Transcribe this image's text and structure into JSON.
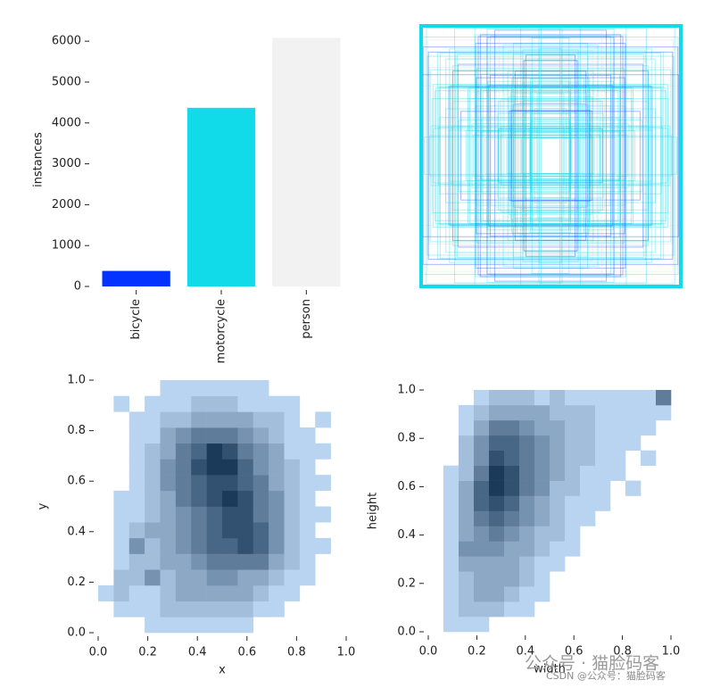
{
  "chart_data": [
    {
      "type": "bar",
      "categories": [
        "bicycle",
        "motorcycle",
        "person"
      ],
      "values": [
        380,
        4370,
        6080
      ],
      "colors": [
        "#0433ff",
        "#11dbe8",
        "#f2f2f2"
      ],
      "ylabel": "instances",
      "ylim": [
        0,
        6200
      ],
      "yticks": [
        0,
        1000,
        2000,
        3000,
        4000,
        5000,
        6000
      ]
    },
    {
      "type": "heatmap",
      "xlabel": "x",
      "ylabel": "y",
      "colors": [
        "#b9d4f0",
        "#1b3a5a"
      ],
      "xlim": [
        0,
        1
      ],
      "ylim": [
        0,
        1
      ],
      "xticks": [
        {
          "value": 0,
          "label": "0.0"
        },
        {
          "value": 0.2,
          "label": "0.2"
        },
        {
          "value": 0.4,
          "label": "0.4"
        },
        {
          "value": 0.6,
          "label": "0.6"
        },
        {
          "value": 0.8,
          "label": "0.8"
        },
        {
          "value": 1,
          "label": "1.0"
        }
      ],
      "yticks": [
        {
          "value": 0,
          "label": "0.0"
        },
        {
          "value": 0.2,
          "label": "0.2"
        },
        {
          "value": 0.4,
          "label": "0.4"
        },
        {
          "value": 0.6,
          "label": "0.6"
        },
        {
          "value": 0.8,
          "label": "0.8"
        },
        {
          "value": 1,
          "label": "1.0"
        }
      ],
      "z": [
        [
          0,
          0,
          0,
          1,
          1,
          1,
          1,
          1,
          1,
          1,
          0,
          0,
          0,
          0,
          0,
          0
        ],
        [
          0,
          1,
          1,
          1,
          2,
          2,
          2,
          2,
          2,
          2,
          1,
          1,
          0,
          0,
          0,
          0
        ],
        [
          1,
          2,
          1,
          1,
          2,
          3,
          3,
          3,
          3,
          3,
          2,
          1,
          1,
          0,
          0,
          0
        ],
        [
          0,
          2,
          2,
          4,
          2,
          3,
          3,
          4,
          4,
          3,
          3,
          2,
          1,
          1,
          0,
          0
        ],
        [
          0,
          1,
          2,
          2,
          3,
          3,
          4,
          5,
          5,
          5,
          5,
          3,
          2,
          1,
          0,
          0
        ],
        [
          0,
          1,
          4,
          2,
          3,
          4,
          5,
          6,
          6,
          7,
          6,
          4,
          2,
          1,
          1,
          0
        ],
        [
          0,
          1,
          2,
          3,
          3,
          4,
          5,
          6,
          7,
          7,
          6,
          4,
          2,
          1,
          0,
          0
        ],
        [
          0,
          1,
          1,
          2,
          3,
          4,
          5,
          6,
          7,
          7,
          5,
          4,
          2,
          1,
          1,
          0
        ],
        [
          0,
          1,
          1,
          2,
          3,
          5,
          6,
          7,
          8,
          7,
          5,
          4,
          2,
          1,
          0,
          0
        ],
        [
          0,
          0,
          1,
          2,
          4,
          5,
          6,
          7,
          7,
          6,
          5,
          3,
          2,
          1,
          1,
          0
        ],
        [
          0,
          0,
          1,
          2,
          4,
          5,
          7,
          8,
          8,
          6,
          4,
          3,
          2,
          1,
          0,
          0
        ],
        [
          0,
          0,
          1,
          2,
          3,
          5,
          6,
          8,
          7,
          5,
          4,
          3,
          1,
          1,
          1,
          0
        ],
        [
          0,
          0,
          1,
          1,
          3,
          4,
          5,
          5,
          5,
          4,
          3,
          2,
          1,
          1,
          0,
          0
        ],
        [
          0,
          0,
          1,
          1,
          2,
          2,
          3,
          3,
          3,
          3,
          2,
          2,
          1,
          0,
          1,
          0
        ],
        [
          0,
          1,
          0,
          1,
          1,
          1,
          2,
          2,
          2,
          1,
          1,
          1,
          1,
          0,
          0,
          0
        ],
        [
          0,
          0,
          0,
          0,
          1,
          1,
          1,
          1,
          1,
          1,
          1,
          0,
          0,
          0,
          0,
          0
        ]
      ]
    },
    {
      "type": "heatmap",
      "xlabel": "width",
      "ylabel": "height",
      "colors": [
        "#b9d4f0",
        "#1b3a5a"
      ],
      "xlim": [
        0,
        1
      ],
      "ylim": [
        0,
        1
      ],
      "xticks": [
        {
          "value": 0,
          "label": "0.0"
        },
        {
          "value": 0.2,
          "label": "0.2"
        },
        {
          "value": 0.4,
          "label": "0.4"
        },
        {
          "value": 0.6,
          "label": "0.6"
        },
        {
          "value": 0.8,
          "label": "0.8"
        },
        {
          "value": 1,
          "label": "1.0"
        }
      ],
      "yticks": [
        {
          "value": 0,
          "label": "0.0"
        },
        {
          "value": 0.2,
          "label": "0.2"
        },
        {
          "value": 0.4,
          "label": "0.4"
        },
        {
          "value": 0.6,
          "label": "0.6"
        },
        {
          "value": 0.8,
          "label": "0.8"
        },
        {
          "value": 1,
          "label": "1.0"
        }
      ],
      "z": [
        [
          0,
          1,
          1,
          1,
          0,
          0,
          0,
          0,
          0,
          0,
          0,
          0,
          0,
          0,
          0,
          0
        ],
        [
          0,
          1,
          2,
          2,
          2,
          1,
          1,
          0,
          0,
          0,
          0,
          0,
          0,
          0,
          0,
          0
        ],
        [
          0,
          1,
          2,
          3,
          3,
          2,
          1,
          1,
          0,
          0,
          0,
          0,
          0,
          0,
          0,
          0
        ],
        [
          0,
          1,
          2,
          3,
          3,
          3,
          2,
          1,
          0,
          0,
          0,
          0,
          0,
          0,
          0,
          0
        ],
        [
          0,
          1,
          3,
          3,
          3,
          3,
          2,
          1,
          1,
          0,
          0,
          0,
          0,
          0,
          0,
          0
        ],
        [
          0,
          1,
          4,
          4,
          4,
          3,
          3,
          2,
          1,
          1,
          0,
          0,
          0,
          0,
          0,
          0
        ],
        [
          0,
          1,
          3,
          4,
          5,
          4,
          3,
          2,
          2,
          1,
          0,
          0,
          0,
          0,
          0,
          0
        ],
        [
          0,
          1,
          3,
          5,
          6,
          5,
          4,
          3,
          2,
          1,
          1,
          0,
          0,
          0,
          0,
          0
        ],
        [
          0,
          1,
          3,
          6,
          7,
          6,
          4,
          3,
          2,
          1,
          1,
          1,
          0,
          0,
          0,
          0
        ],
        [
          0,
          1,
          3,
          6,
          8,
          7,
          5,
          4,
          2,
          2,
          1,
          1,
          0,
          1,
          0,
          0
        ],
        [
          0,
          1,
          2,
          5,
          8,
          7,
          5,
          4,
          3,
          2,
          1,
          1,
          1,
          0,
          0,
          0
        ],
        [
          0,
          0,
          2,
          4,
          7,
          6,
          5,
          4,
          3,
          2,
          2,
          1,
          1,
          0,
          1,
          0
        ],
        [
          0,
          0,
          2,
          4,
          6,
          6,
          5,
          4,
          3,
          2,
          2,
          1,
          1,
          1,
          0,
          0
        ],
        [
          0,
          0,
          1,
          3,
          5,
          5,
          4,
          3,
          3,
          2,
          2,
          1,
          1,
          1,
          1,
          0
        ],
        [
          0,
          0,
          1,
          2,
          3,
          3,
          3,
          3,
          2,
          2,
          2,
          1,
          1,
          1,
          1,
          1
        ],
        [
          0,
          0,
          0,
          1,
          2,
          2,
          2,
          1,
          2,
          1,
          1,
          1,
          1,
          1,
          1,
          5
        ]
      ]
    }
  ],
  "watermark": {
    "primary": "公众号 · 猫脸码客",
    "secondary": "CSDN @公众号：猫脸码客"
  }
}
